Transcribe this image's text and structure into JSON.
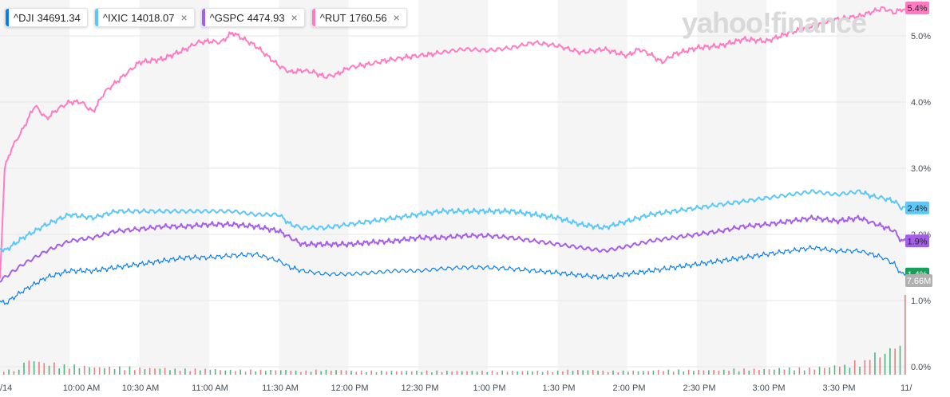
{
  "legend": [
    {
      "symbol": "^DJI",
      "value": "34691.34",
      "color": "#0b7ff0",
      "closable": false
    },
    {
      "symbol": "^IXIC",
      "value": "14018.07",
      "color": "#5ac8fa",
      "closable": true
    },
    {
      "symbol": "^GSPC",
      "value": "4474.93",
      "color": "#a65eea",
      "closable": true
    },
    {
      "symbol": "^RUT",
      "value": "1760.56",
      "color": "#ff7bc2",
      "closable": true
    }
  ],
  "close_glyph": "×",
  "watermark": "yahoo!finance",
  "badges": {
    "rut": "5.4%",
    "ixic": "2.4%",
    "gspc": "1.9%",
    "dji": "1.4%",
    "volume": "7.66M"
  },
  "colors": {
    "up": "#1a9f5a",
    "down": "#e2555b",
    "badge_volume": "#b0b0b0"
  },
  "chart_data": {
    "type": "line",
    "x_tick_labels": [
      "/14",
      "10:00 AM",
      "10:30 AM",
      "11:00 AM",
      "11:30 AM",
      "12:00 PM",
      "12:30 PM",
      "1:00 PM",
      "1:30 PM",
      "2:00 PM",
      "2:30 PM",
      "3:00 PM",
      "3:30 PM",
      "11/"
    ],
    "y_tick_labels": [
      "0.0%",
      "1.0%",
      "2.0%",
      "3.0%",
      "4.0%",
      "5.0%"
    ],
    "ylim": [
      0,
      5.45
    ],
    "x_range_minutes": [
      570,
      960
    ],
    "grid": true,
    "series": [
      {
        "name": "^RUT",
        "color": "#ff7bc2",
        "x": [
          570,
          572,
          575,
          580,
          585,
          590,
          595,
          600,
          605,
          610,
          615,
          620,
          625,
          630,
          640,
          650,
          655,
          660,
          665,
          670,
          680,
          690,
          695,
          700,
          705,
          710,
          715,
          720,
          725,
          730,
          735,
          740,
          745,
          750,
          755,
          760,
          770,
          780,
          790,
          800,
          810,
          820,
          830,
          840,
          845,
          850,
          855,
          860,
          870,
          880,
          890,
          900,
          910,
          920,
          930,
          940,
          950,
          955,
          958,
          960
        ],
        "values": [
          1.3,
          3.0,
          3.3,
          3.6,
          3.95,
          3.75,
          3.9,
          4.0,
          4.0,
          3.85,
          4.15,
          4.3,
          4.45,
          4.6,
          4.65,
          4.8,
          4.9,
          4.92,
          4.9,
          5.05,
          4.85,
          4.55,
          4.45,
          4.48,
          4.45,
          4.38,
          4.42,
          4.52,
          4.55,
          4.58,
          4.62,
          4.65,
          4.68,
          4.7,
          4.72,
          4.75,
          4.8,
          4.78,
          4.82,
          4.9,
          4.85,
          4.75,
          4.8,
          4.7,
          4.8,
          4.72,
          4.6,
          4.72,
          4.82,
          4.85,
          4.95,
          4.92,
          5.05,
          5.15,
          5.25,
          5.3,
          5.42,
          5.35,
          5.4,
          5.4
        ]
      },
      {
        "name": "^IXIC",
        "color": "#5ac8fa",
        "x": [
          570,
          572,
          580,
          590,
          600,
          610,
          620,
          630,
          640,
          650,
          660,
          670,
          680,
          690,
          695,
          700,
          710,
          720,
          730,
          740,
          750,
          760,
          770,
          780,
          790,
          800,
          810,
          820,
          830,
          840,
          850,
          860,
          870,
          880,
          890,
          900,
          910,
          920,
          930,
          940,
          945,
          950,
          955,
          958,
          960
        ],
        "values": [
          1.8,
          1.75,
          1.95,
          2.15,
          2.3,
          2.25,
          2.35,
          2.35,
          2.35,
          2.35,
          2.35,
          2.35,
          2.3,
          2.3,
          2.15,
          2.1,
          2.1,
          2.15,
          2.2,
          2.25,
          2.3,
          2.35,
          2.35,
          2.35,
          2.35,
          2.3,
          2.25,
          2.15,
          2.1,
          2.2,
          2.3,
          2.35,
          2.4,
          2.45,
          2.5,
          2.55,
          2.6,
          2.65,
          2.6,
          2.65,
          2.58,
          2.55,
          2.5,
          2.4,
          2.4
        ]
      },
      {
        "name": "^GSPC",
        "color": "#a65eea",
        "x": [
          570,
          572,
          580,
          590,
          600,
          610,
          620,
          630,
          640,
          650,
          660,
          670,
          680,
          690,
          695,
          700,
          710,
          720,
          730,
          740,
          750,
          760,
          770,
          780,
          790,
          800,
          810,
          820,
          830,
          840,
          850,
          860,
          870,
          880,
          890,
          900,
          910,
          920,
          930,
          940,
          945,
          950,
          955,
          958,
          960
        ],
        "values": [
          1.3,
          1.35,
          1.55,
          1.75,
          1.9,
          1.95,
          2.05,
          2.08,
          2.12,
          2.12,
          2.15,
          2.15,
          2.12,
          2.05,
          1.95,
          1.85,
          1.85,
          1.85,
          1.88,
          1.9,
          1.95,
          1.95,
          1.98,
          1.98,
          1.95,
          1.9,
          1.85,
          1.8,
          1.75,
          1.82,
          1.9,
          1.95,
          2.0,
          2.05,
          2.12,
          2.15,
          2.2,
          2.25,
          2.2,
          2.25,
          2.18,
          2.12,
          2.05,
          1.9,
          1.9
        ]
      },
      {
        "name": "^DJI",
        "color": "#0b7ff0",
        "x": [
          570,
          572,
          580,
          590,
          600,
          610,
          620,
          630,
          640,
          650,
          660,
          670,
          680,
          690,
          695,
          700,
          710,
          720,
          730,
          740,
          750,
          760,
          770,
          780,
          790,
          800,
          810,
          820,
          830,
          840,
          850,
          860,
          870,
          880,
          890,
          900,
          910,
          920,
          930,
          940,
          945,
          950,
          955,
          958,
          960
        ],
        "values": [
          1.0,
          0.95,
          1.15,
          1.35,
          1.45,
          1.45,
          1.5,
          1.55,
          1.6,
          1.65,
          1.65,
          1.68,
          1.7,
          1.6,
          1.5,
          1.45,
          1.4,
          1.4,
          1.42,
          1.45,
          1.45,
          1.48,
          1.5,
          1.5,
          1.48,
          1.45,
          1.42,
          1.38,
          1.35,
          1.4,
          1.45,
          1.5,
          1.55,
          1.6,
          1.65,
          1.7,
          1.75,
          1.8,
          1.75,
          1.75,
          1.7,
          1.65,
          1.55,
          1.4,
          1.4
        ]
      }
    ],
    "volume": {
      "name": "volume",
      "max_label": "7.66M",
      "values_relative": [
        0.05,
        0.15,
        0.12,
        0.1,
        0.09,
        0.08,
        0.08,
        0.07,
        0.07,
        0.06,
        0.06,
        0.06,
        0.05,
        0.05,
        0.05,
        0.05,
        0.04,
        0.05,
        0.05,
        0.04,
        0.04,
        0.04,
        0.04,
        0.04,
        0.04,
        0.04,
        0.04,
        0.04,
        0.04,
        0.04,
        0.04,
        0.05,
        0.05,
        0.04,
        0.04,
        0.04,
        0.05,
        0.05,
        0.05,
        0.05,
        0.06,
        0.06,
        0.06,
        0.07,
        0.07,
        0.08,
        0.1,
        0.14,
        0.22,
        0.3,
        1.0
      ]
    }
  }
}
